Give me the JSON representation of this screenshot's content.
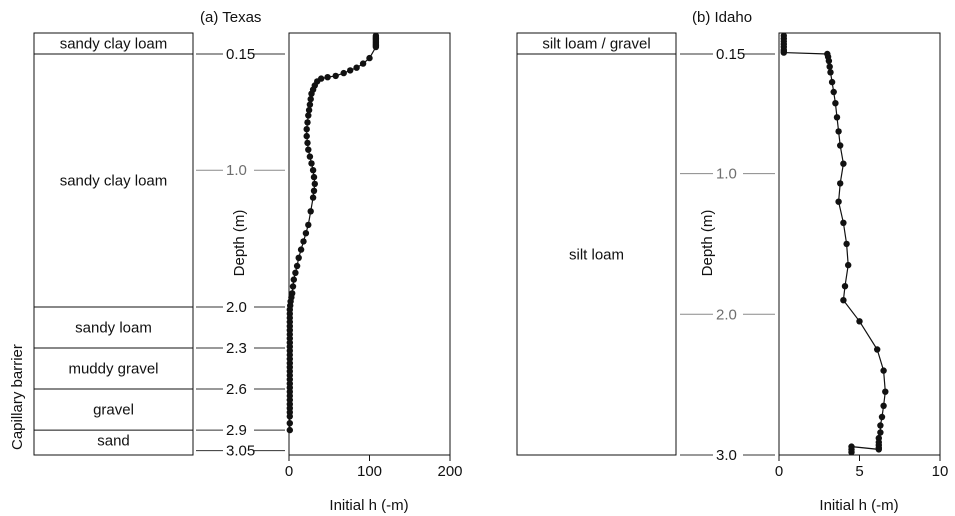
{
  "chart_data": [
    {
      "type": "line",
      "title": "(a) Texas",
      "xlabel": "Initial h (-m)",
      "ylabel": "Depth (m)",
      "xlim": [
        0,
        200
      ],
      "ylim": [
        3.05,
        0
      ],
      "x_ticks": [
        "0",
        "100",
        "200"
      ],
      "depth_ticks": [
        "0.15",
        "1.0",
        "2.0",
        "2.3",
        "2.6",
        "2.9",
        "3.05"
      ],
      "depth_tick_values": [
        0.15,
        1.0,
        2.0,
        2.3,
        2.6,
        2.9,
        3.05
      ],
      "grid": false,
      "legend": "none",
      "side_label": "Capillary barrier",
      "layers": [
        {
          "name": "sandy clay loam",
          "top": 0,
          "bottom": 0.15
        },
        {
          "name": "sandy clay loam",
          "top": 0.15,
          "bottom": 2.0
        },
        {
          "name": "sandy loam",
          "top": 2.0,
          "bottom": 2.3
        },
        {
          "name": "muddy gravel",
          "top": 2.3,
          "bottom": 2.6
        },
        {
          "name": "gravel",
          "top": 2.6,
          "bottom": 2.9
        },
        {
          "name": "sand",
          "top": 2.9,
          "bottom": 3.05
        }
      ],
      "series": [
        {
          "x": [
            108,
            108,
            108,
            108,
            108,
            108,
            108,
            108,
            108,
            100,
            92,
            84,
            76,
            68,
            58,
            48,
            40,
            35,
            32,
            30,
            28,
            27,
            26,
            25,
            24,
            23,
            22,
            22,
            23,
            24,
            26,
            28,
            30,
            31,
            32,
            31,
            30,
            27,
            24,
            21,
            18,
            15,
            12,
            10,
            8,
            6,
            5,
            4,
            3,
            2,
            1.5,
            1,
            1,
            1,
            1,
            1,
            1,
            1,
            1,
            1,
            1,
            1,
            1,
            1,
            1,
            1,
            1,
            1,
            1,
            1,
            1,
            1,
            1,
            1,
            1,
            1,
            1,
            1,
            1,
            1
          ],
          "y": [
            0.02,
            0.03,
            0.04,
            0.05,
            0.06,
            0.07,
            0.08,
            0.09,
            0.1,
            0.18,
            0.22,
            0.25,
            0.27,
            0.29,
            0.31,
            0.32,
            0.33,
            0.35,
            0.38,
            0.41,
            0.44,
            0.48,
            0.52,
            0.56,
            0.6,
            0.65,
            0.7,
            0.75,
            0.8,
            0.85,
            0.9,
            0.95,
            1.0,
            1.05,
            1.1,
            1.15,
            1.2,
            1.3,
            1.4,
            1.46,
            1.52,
            1.58,
            1.64,
            1.7,
            1.75,
            1.8,
            1.85,
            1.9,
            1.93,
            1.96,
            1.99,
            2.02,
            2.05,
            2.08,
            2.11,
            2.14,
            2.17,
            2.2,
            2.23,
            2.26,
            2.29,
            2.32,
            2.35,
            2.38,
            2.41,
            2.44,
            2.47,
            2.5,
            2.53,
            2.56,
            2.59,
            2.62,
            2.65,
            2.68,
            2.71,
            2.74,
            2.77,
            2.8,
            2.85,
            2.9
          ]
        }
      ]
    },
    {
      "type": "line",
      "title": "(b) Idaho",
      "xlabel": "Initial h (-m)",
      "ylabel": "Depth (m)",
      "xlim": [
        0,
        10
      ],
      "ylim": [
        3.0,
        0
      ],
      "x_ticks": [
        "0",
        "5",
        "10"
      ],
      "depth_ticks": [
        "0.15",
        "1.0",
        "2.0",
        "3.0"
      ],
      "depth_tick_values": [
        0.15,
        1.0,
        2.0,
        3.0
      ],
      "grid": false,
      "legend": "none",
      "layers": [
        {
          "name": "silt loam / gravel",
          "top": 0,
          "bottom": 0.15
        },
        {
          "name": "silt loam",
          "top": 0.15,
          "bottom": 3.0
        }
      ],
      "series": [
        {
          "x": [
            0.3,
            0.3,
            0.3,
            0.3,
            0.3,
            0.3,
            0.3,
            0.3,
            3.0,
            3.05,
            3.1,
            3.15,
            3.2,
            3.3,
            3.4,
            3.5,
            3.6,
            3.7,
            3.8,
            4.0,
            3.8,
            3.7,
            4.0,
            4.2,
            4.3,
            4.1,
            4.0,
            5.0,
            6.1,
            6.5,
            6.6,
            6.5,
            6.4,
            6.3,
            6.3,
            6.2,
            6.2,
            6.2,
            6.2,
            6.2,
            4.5,
            4.5,
            4.5
          ],
          "y": [
            0.02,
            0.04,
            0.06,
            0.08,
            0.1,
            0.12,
            0.13,
            0.14,
            0.15,
            0.17,
            0.2,
            0.24,
            0.28,
            0.35,
            0.42,
            0.5,
            0.6,
            0.7,
            0.8,
            0.93,
            1.07,
            1.2,
            1.35,
            1.5,
            1.65,
            1.8,
            1.9,
            2.05,
            2.25,
            2.4,
            2.55,
            2.65,
            2.73,
            2.79,
            2.84,
            2.88,
            2.91,
            2.93,
            2.95,
            2.96,
            2.94,
            2.96,
            2.98
          ]
        }
      ]
    }
  ]
}
